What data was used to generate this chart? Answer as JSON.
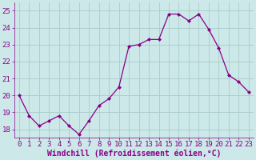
{
  "x": [
    0,
    1,
    2,
    3,
    4,
    5,
    6,
    7,
    8,
    9,
    10,
    11,
    12,
    13,
    14,
    15,
    16,
    17,
    18,
    19,
    20,
    21,
    22,
    23
  ],
  "y": [
    20.0,
    18.8,
    18.2,
    18.5,
    18.8,
    18.2,
    17.7,
    18.5,
    19.4,
    19.8,
    20.5,
    22.9,
    23.0,
    23.3,
    23.3,
    24.8,
    24.8,
    24.4,
    24.8,
    23.9,
    22.8,
    21.2,
    20.8,
    20.2
  ],
  "line_color": "#880088",
  "marker": "D",
  "marker_size": 2,
  "bg_color": "#cce8e8",
  "grid_color": "#aacccc",
  "xlabel": "Windchill (Refroidissement éolien,°C)",
  "xlim": [
    -0.5,
    23.5
  ],
  "ylim": [
    17.5,
    25.5
  ],
  "yticks": [
    18,
    19,
    20,
    21,
    22,
    23,
    24,
    25
  ],
  "xticks": [
    0,
    1,
    2,
    3,
    4,
    5,
    6,
    7,
    8,
    9,
    10,
    11,
    12,
    13,
    14,
    15,
    16,
    17,
    18,
    19,
    20,
    21,
    22,
    23
  ],
  "tick_fontsize": 6.5,
  "xlabel_fontsize": 7,
  "line_width": 0.9
}
